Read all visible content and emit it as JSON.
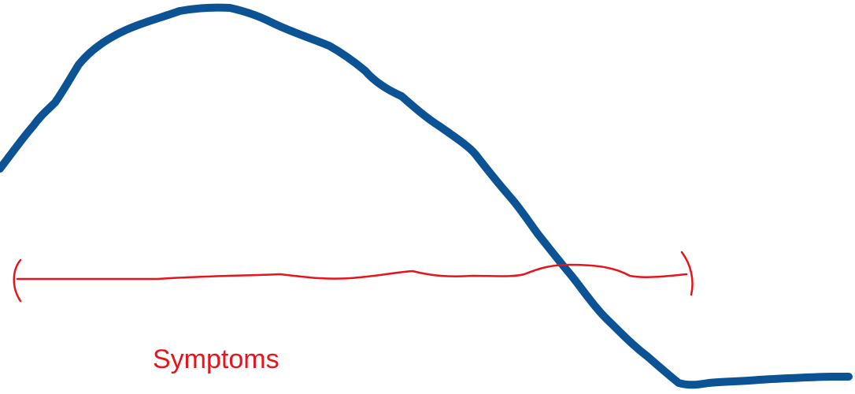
{
  "annotation": {
    "label": "Symptoms",
    "color": "#e8141b"
  },
  "curve": {
    "color": "#0b5394"
  },
  "background": "#ffffff"
}
